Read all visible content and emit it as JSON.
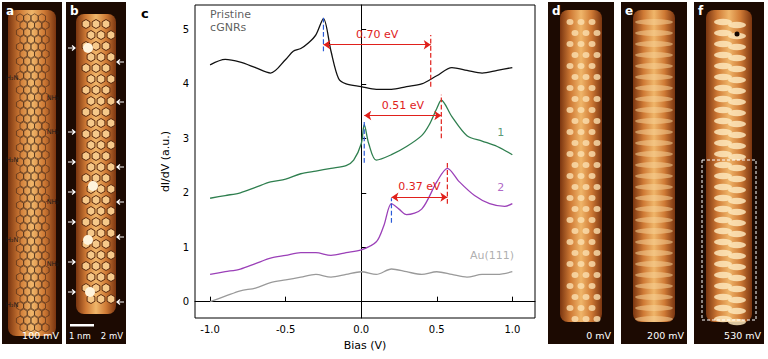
{
  "images": [
    {
      "panel": "a",
      "bias": "100 mV",
      "labels_left": [
        "H₂N",
        "H₂N",
        "H₂N",
        "H₂N"
      ],
      "labels_right": [
        "NH₂",
        "NH₂",
        "NH₂",
        "NH₂"
      ]
    },
    {
      "panel": "b",
      "bias": "2 mV",
      "scale_bar": "1 nm"
    },
    {
      "panel": "d",
      "bias": "0 mV"
    },
    {
      "panel": "e",
      "bias": "200 mV"
    },
    {
      "panel": "f",
      "bias": "530 mV"
    }
  ],
  "chart_data": {
    "type": "line",
    "panel": "c",
    "xlabel": "Bias (V)",
    "ylabel": "dI/dV (a.u.)",
    "xlim": [
      -1.1,
      1.15
    ],
    "xticks": [
      {
        "value": -1,
        "label": "-1.0"
      },
      {
        "value": -0.5,
        "label": "-0.5"
      },
      {
        "value": 0,
        "label": "0.0"
      },
      {
        "value": 0.5,
        "label": "0.5"
      },
      {
        "value": 1,
        "label": "1.0"
      }
    ],
    "ylim": [
      -0.3,
      5.45
    ],
    "yticks": [
      0,
      1,
      2,
      3,
      4,
      5
    ],
    "grid": false,
    "series": [
      {
        "name": "Pristine cGNRs",
        "color": "#111111",
        "label_at": [
          -1.0,
          5.15
        ],
        "x": [
          -1.0,
          -0.9,
          -0.8,
          -0.7,
          -0.6,
          -0.5,
          -0.45,
          -0.4,
          -0.35,
          -0.3,
          -0.25,
          -0.2,
          -0.15,
          -0.1,
          0.0,
          0.1,
          0.2,
          0.3,
          0.4,
          0.5,
          0.6,
          0.7,
          0.8,
          0.9,
          1.0
        ],
        "values": [
          4.35,
          4.45,
          4.4,
          4.3,
          4.2,
          4.45,
          4.6,
          4.65,
          4.75,
          4.9,
          5.2,
          4.6,
          4.1,
          4.0,
          3.95,
          3.9,
          3.9,
          3.95,
          4.0,
          4.15,
          4.3,
          4.25,
          4.2,
          4.25,
          4.3
        ]
      },
      {
        "name": "1",
        "color": "#2f7f4f",
        "label_at": [
          0.9,
          3.1
        ],
        "x": [
          -1.0,
          -0.9,
          -0.8,
          -0.7,
          -0.6,
          -0.5,
          -0.4,
          -0.3,
          -0.2,
          -0.1,
          -0.05,
          0.0,
          0.02,
          0.05,
          0.1,
          0.2,
          0.3,
          0.4,
          0.45,
          0.5,
          0.53,
          0.6,
          0.7,
          0.8,
          0.9,
          1.0
        ],
        "values": [
          1.9,
          1.95,
          2.0,
          2.1,
          2.2,
          2.25,
          2.35,
          2.4,
          2.45,
          2.5,
          2.6,
          2.9,
          3.25,
          2.9,
          2.6,
          2.7,
          2.85,
          3.05,
          3.25,
          3.55,
          3.7,
          3.4,
          3.05,
          2.95,
          2.85,
          2.7
        ]
      },
      {
        "name": "2",
        "color": "#9b40b8",
        "label_at": [
          0.9,
          2.1
        ],
        "x": [
          -1.0,
          -0.9,
          -0.8,
          -0.7,
          -0.6,
          -0.5,
          -0.4,
          -0.3,
          -0.2,
          -0.1,
          0.0,
          0.1,
          0.15,
          0.2,
          0.25,
          0.3,
          0.4,
          0.5,
          0.57,
          0.65,
          0.75,
          0.85,
          0.95,
          1.0
        ],
        "values": [
          0.5,
          0.55,
          0.6,
          0.7,
          0.8,
          0.85,
          0.9,
          0.9,
          0.85,
          0.9,
          0.95,
          1.1,
          1.4,
          1.8,
          1.7,
          1.6,
          1.7,
          2.2,
          2.45,
          2.2,
          1.95,
          1.8,
          1.75,
          1.8
        ]
      },
      {
        "name": "Au(111)",
        "color": "#9a9a9a",
        "label_at": [
          0.72,
          0.85
        ],
        "x": [
          -1.0,
          -0.9,
          -0.8,
          -0.7,
          -0.6,
          -0.5,
          -0.4,
          -0.3,
          -0.2,
          -0.1,
          0.0,
          0.1,
          0.2,
          0.3,
          0.4,
          0.5,
          0.6,
          0.7,
          0.8,
          0.9,
          1.0
        ],
        "values": [
          0.0,
          0.1,
          0.2,
          0.25,
          0.35,
          0.4,
          0.45,
          0.5,
          0.45,
          0.5,
          0.55,
          0.5,
          0.6,
          0.55,
          0.5,
          0.55,
          0.5,
          0.45,
          0.5,
          0.5,
          0.55
        ]
      }
    ],
    "annotations": [
      {
        "text": "0.70 eV",
        "x": [
          -0.25,
          0.46
        ],
        "y": 4.72,
        "color": "#e0201b"
      },
      {
        "text": "0.51 eV",
        "x": [
          0.02,
          0.53
        ],
        "y": 3.42,
        "color": "#e0201b"
      },
      {
        "text": "0.37 eV",
        "x": [
          0.2,
          0.57
        ],
        "y": 1.92,
        "color": "#e0201b"
      }
    ],
    "dashed_lines": [
      {
        "x": -0.25,
        "y": [
          4.6,
          5.25
        ],
        "color": "#2a5bd7"
      },
      {
        "x": 0.46,
        "y": [
          3.95,
          4.9
        ],
        "color": "#e0201b"
      },
      {
        "x": 0.02,
        "y": [
          2.55,
          3.3
        ],
        "color": "#2a5bd7"
      },
      {
        "x": 0.53,
        "y": [
          3.0,
          3.8
        ],
        "color": "#e0201b"
      },
      {
        "x": 0.2,
        "y": [
          1.45,
          1.9
        ],
        "color": "#2a5bd7"
      },
      {
        "x": 0.57,
        "y": [
          1.8,
          2.55
        ],
        "color": "#e0201b"
      }
    ]
  }
}
